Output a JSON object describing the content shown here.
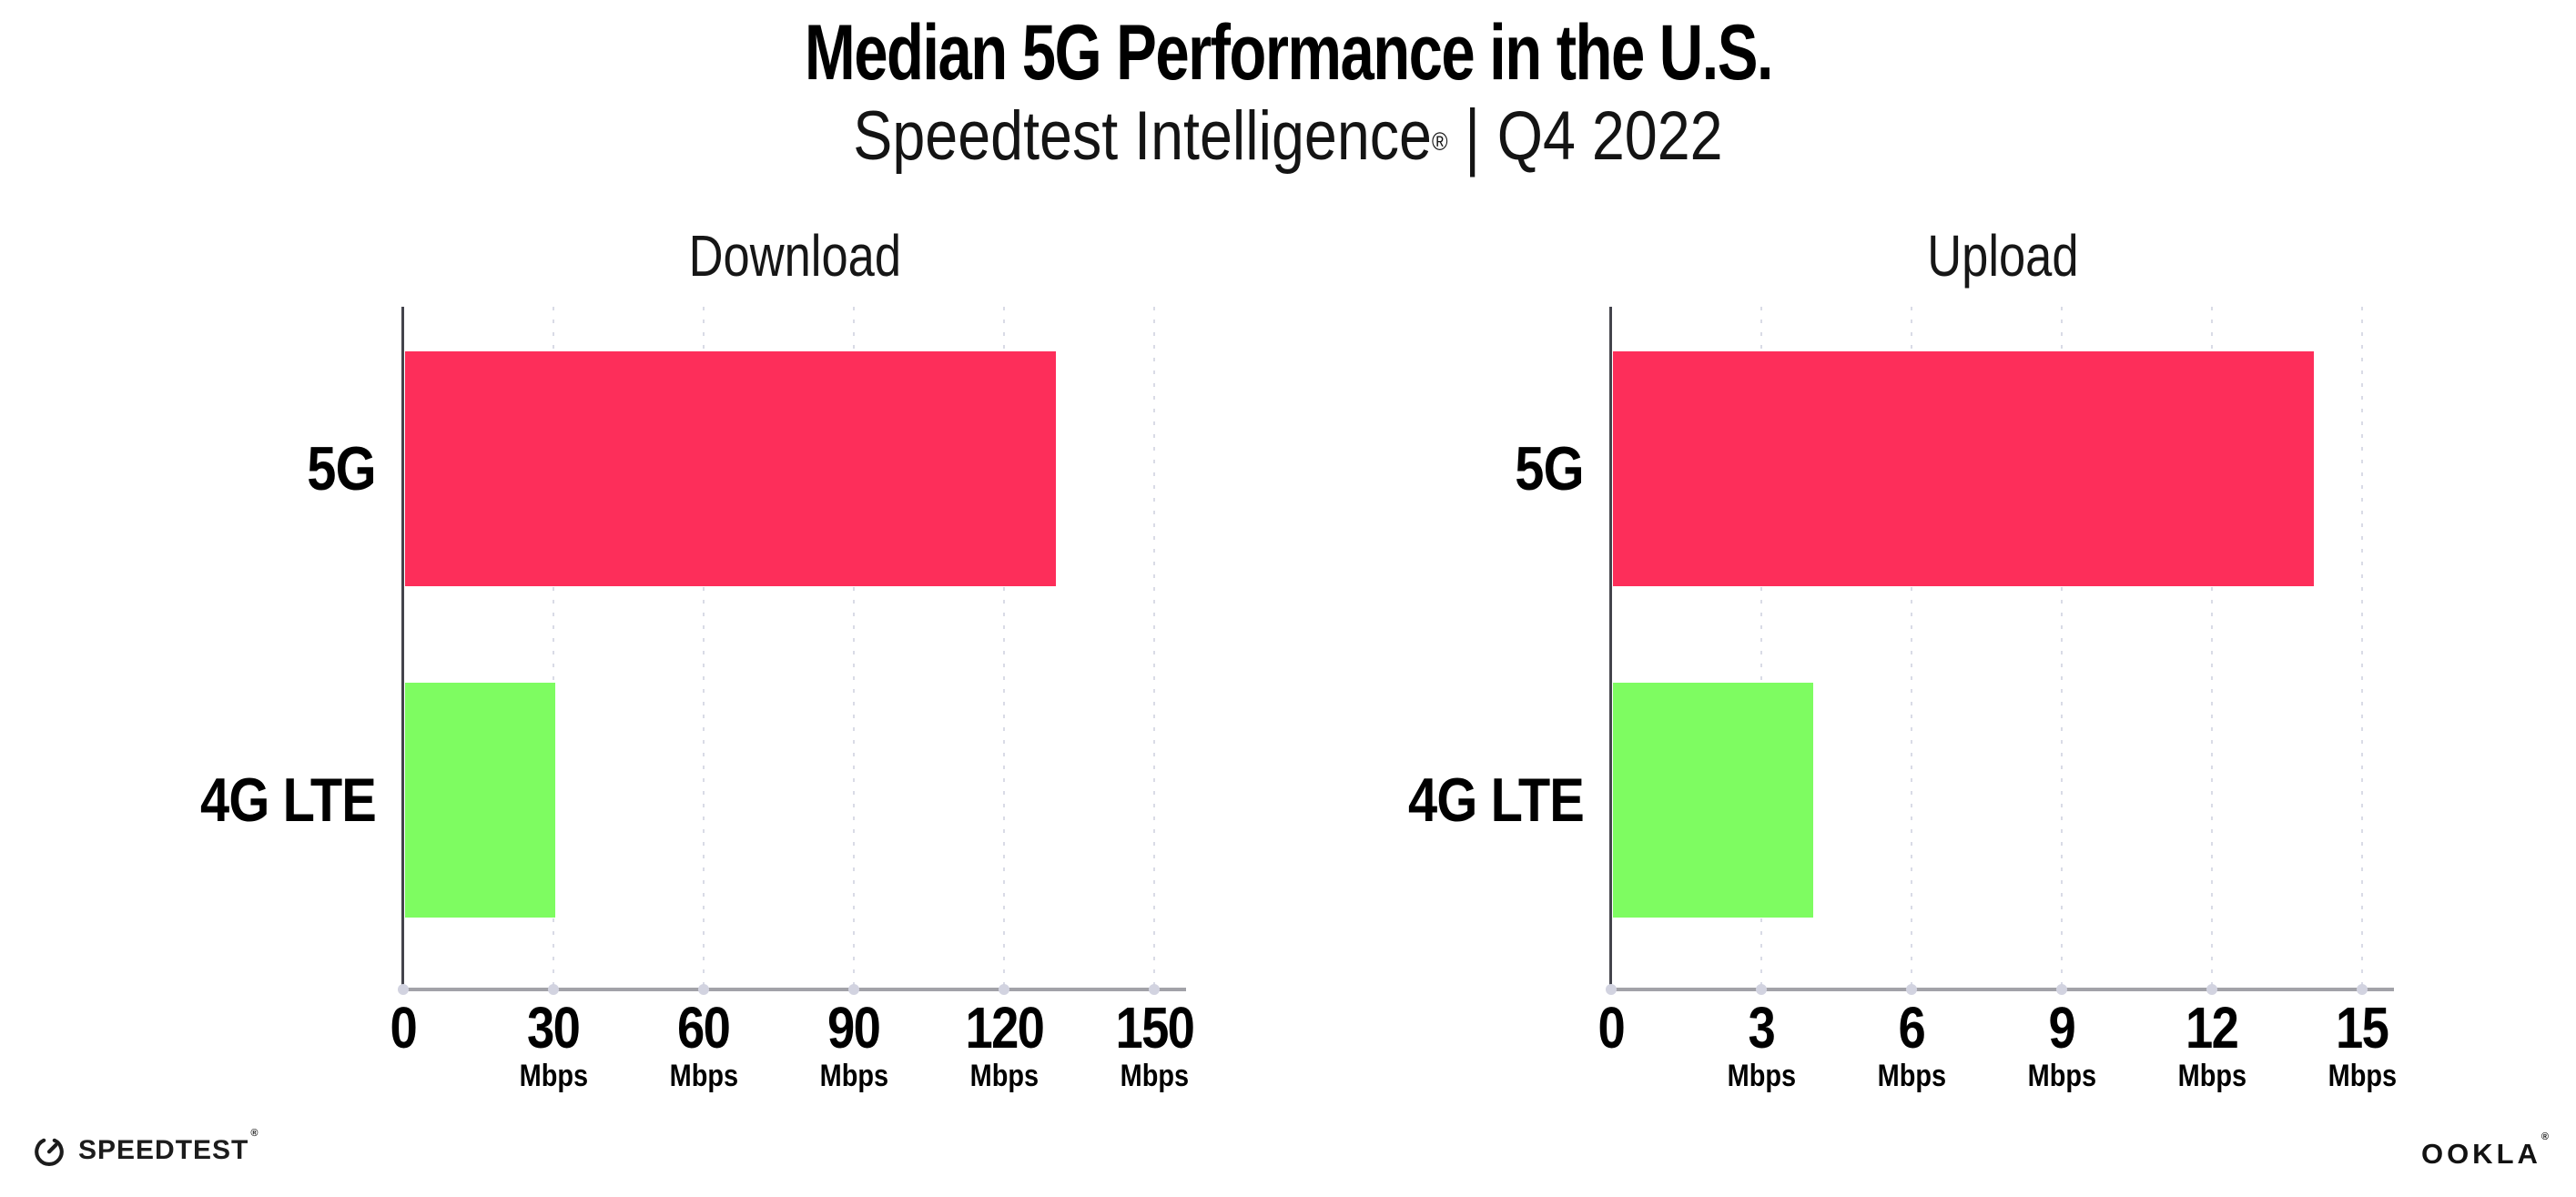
{
  "header": {
    "title": "Median 5G Performance in the U.S.",
    "subtitle_brand": "Speedtest Intelligence",
    "subtitle_reg": "®",
    "subtitle_sep": "|",
    "subtitle_period": "Q4 2022"
  },
  "footer": {
    "speedtest_label": "SPEEDTEST",
    "speedtest_reg": "®",
    "speedtest_icon": "gauge-icon",
    "ookla_label": "OOKLA",
    "ookla_reg": "®"
  },
  "colors": {
    "bar_5g": "#fd2e5a",
    "bar_4g_lte": "#7efc61",
    "x_axis_line": "#a2a2a8",
    "y_axis_line": "#44444c",
    "gridline": "#d9dbe6",
    "tick_dot": "#d2d3e0",
    "text": "#000000"
  },
  "chart_data": [
    {
      "type": "bar",
      "orientation": "horizontal",
      "title": "Download",
      "categories": [
        "5G",
        "4G LTE"
      ],
      "values": [
        130,
        30
      ],
      "unit": "Mbps",
      "xlim": [
        0,
        150
      ],
      "xticks": [
        0,
        30,
        60,
        90,
        120,
        150
      ],
      "bar_colors": [
        "#fd2e5a",
        "#7efc61"
      ],
      "grid": "vertical-dotted",
      "legend": "none"
    },
    {
      "type": "bar",
      "orientation": "horizontal",
      "title": "Upload",
      "categories": [
        "5G",
        "4G LTE"
      ],
      "values": [
        14,
        4
      ],
      "unit": "Mbps",
      "xlim": [
        0,
        15
      ],
      "xticks": [
        0,
        3,
        6,
        9,
        12,
        15
      ],
      "bar_colors": [
        "#fd2e5a",
        "#7efc61"
      ],
      "grid": "vertical-dotted",
      "legend": "none"
    }
  ]
}
